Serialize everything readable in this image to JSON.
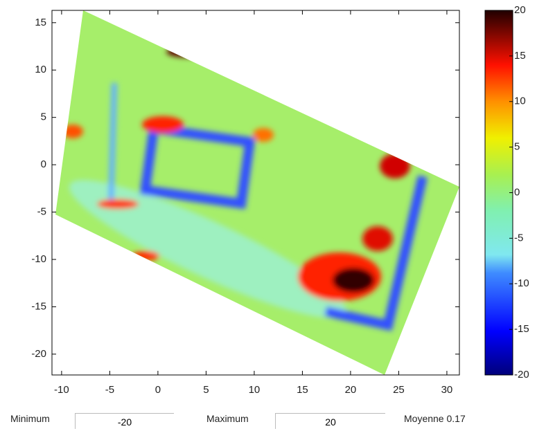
{
  "chart_data": {
    "type": "heatmap",
    "xlim": [
      -11,
      31.3
    ],
    "xticks": [
      -10,
      -5,
      0,
      5,
      10,
      15,
      20,
      25,
      30
    ],
    "ylim": [
      -22.2,
      16.3
    ],
    "yticks": [
      -20,
      -15,
      -10,
      -5,
      0,
      5,
      10,
      15
    ],
    "colorbar": {
      "lim": [
        -20,
        20
      ],
      "ticks": [
        -20,
        -15,
        -10,
        -5,
        0,
        5,
        10,
        15,
        20
      ]
    }
  },
  "controls": {
    "minimum_label": "Minimum",
    "minimum_value": "-20",
    "maximum_label": "Maximum",
    "maximum_value": "20",
    "mean": "Moyenne 0.17"
  }
}
